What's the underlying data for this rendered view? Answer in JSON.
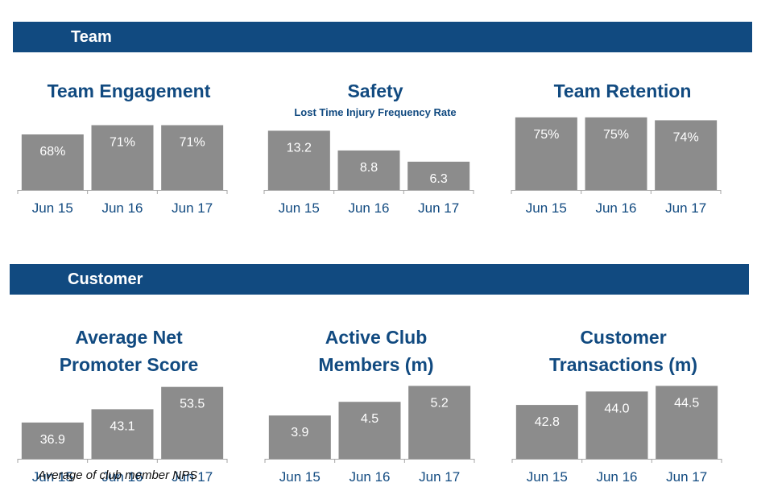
{
  "sections": {
    "team": "Team",
    "customer": "Customer"
  },
  "colors": {
    "band": "#114a80",
    "title": "#114a80",
    "bar": "#8c8c8c",
    "bar_label": "#ffffff",
    "axis": "#a6a6a6",
    "tick": "#114a80"
  },
  "footnote": "Average of club member NPS",
  "chart_data": [
    {
      "type": "bar",
      "title": "Team Engagement",
      "subtitle": "",
      "categories": [
        "Jun 15",
        "Jun 16",
        "Jun 17"
      ],
      "values": [
        68,
        71,
        71
      ],
      "labels": [
        "68%",
        "71%",
        "71%"
      ],
      "ylim": [
        50,
        74
      ]
    },
    {
      "type": "bar",
      "title": "Safety",
      "subtitle": "Lost Time Injury Frequency Rate",
      "categories": [
        "Jun 15",
        "Jun 16",
        "Jun 17"
      ],
      "values": [
        13.2,
        8.8,
        6.3
      ],
      "labels": [
        "13.2",
        "8.8",
        "6.3"
      ],
      "ylim": [
        0,
        16.5
      ]
    },
    {
      "type": "bar",
      "title": "Team Retention",
      "subtitle": "",
      "categories": [
        "Jun 15",
        "Jun 16",
        "Jun 17"
      ],
      "values": [
        75,
        75,
        74
      ],
      "labels": [
        "75%",
        "75%",
        "74%"
      ],
      "ylim": [
        50,
        75.5
      ]
    },
    {
      "type": "bar",
      "title": "Average Net Promoter Score",
      "subtitle": "",
      "categories": [
        "Jun 15",
        "Jun 16",
        "Jun 17"
      ],
      "values": [
        36.9,
        43.1,
        53.5
      ],
      "labels": [
        "36.9",
        "43.1",
        "53.5"
      ],
      "ylim": [
        20,
        54.5
      ]
    },
    {
      "type": "bar",
      "title": "Active Club Members (m)",
      "subtitle": "",
      "categories": [
        "Jun 15",
        "Jun 16",
        "Jun 17"
      ],
      "values": [
        3.9,
        4.5,
        5.2
      ],
      "labels": [
        "3.9",
        "4.5",
        "5.2"
      ],
      "ylim": [
        2,
        5.25
      ]
    },
    {
      "type": "bar",
      "title": "Customer Transactions (m)",
      "subtitle": "",
      "categories": [
        "Jun 15",
        "Jun 16",
        "Jun 17"
      ],
      "values": [
        42.8,
        44.0,
        44.5
      ],
      "labels": [
        "42.8",
        "44.0",
        "44.5"
      ],
      "ylim": [
        38,
        44.6
      ]
    }
  ]
}
